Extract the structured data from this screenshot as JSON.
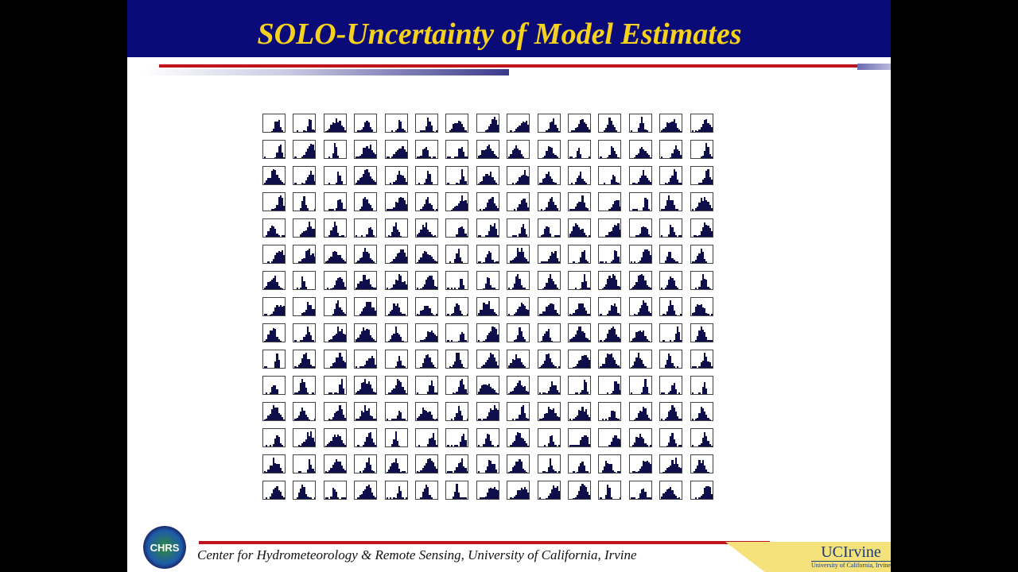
{
  "header": {
    "title": "SOLO-Uncertainty of Model Estimates",
    "background_color": "#0a0a78",
    "title_color": "#f6d21e"
  },
  "figure": {
    "type": "histogram-grid",
    "rows": 15,
    "columns": 15,
    "bar_color": "#0e0e4a"
  },
  "footer": {
    "text": "Center for Hydrometeorology & Remote Sensing, University of California, Irvine",
    "left_logo": "CHRS",
    "right_logo_name": "UCIrvine",
    "right_logo_sub": "University of California, Irvine",
    "accent_color": "#c0141c"
  }
}
